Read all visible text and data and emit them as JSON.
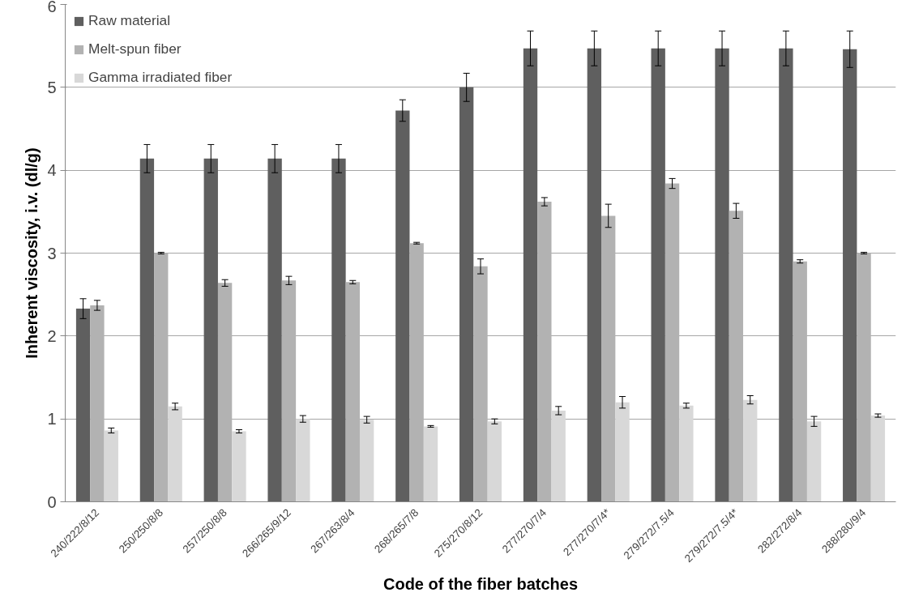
{
  "chart_data": {
    "type": "bar",
    "xlabel": "Code of the fiber batches",
    "ylabel": "Inherent viscosity, i.v. (dl/g)",
    "categories": [
      "240/222/8/12",
      "250/250/8/8",
      "257/250/8/8",
      "266/265/9/12",
      "267/263/8/4",
      "268/265/7/8",
      "275/270/8/12",
      "277/270/7/4",
      "277/270/7/4*",
      "279/272/7.5/4",
      "279/272/7.5/4*",
      "282/272/8/4",
      "288/280/9/4"
    ],
    "series": [
      {
        "name": "Raw material",
        "color": "#5f5f5f",
        "values": [
          2.33,
          4.14,
          4.14,
          4.14,
          4.14,
          4.72,
          5.0,
          5.47,
          5.47,
          5.47,
          5.47,
          5.47,
          5.46
        ],
        "errors": [
          0.12,
          0.17,
          0.17,
          0.17,
          0.17,
          0.13,
          0.17,
          0.21,
          0.21,
          0.21,
          0.21,
          0.21,
          0.22
        ]
      },
      {
        "name": "Melt-spun fiber",
        "color": "#b2b2b2",
        "values": [
          2.37,
          3.0,
          2.64,
          2.67,
          2.65,
          3.12,
          2.84,
          3.62,
          3.45,
          3.84,
          3.51,
          2.9,
          3.0
        ],
        "errors": [
          0.06,
          0.01,
          0.04,
          0.05,
          0.02,
          0.01,
          0.09,
          0.05,
          0.14,
          0.06,
          0.09,
          0.02,
          0.01
        ]
      },
      {
        "name": "Gamma irradiated fiber",
        "color": "#d8d8d8",
        "values": [
          0.86,
          1.15,
          0.85,
          1.0,
          0.99,
          0.91,
          0.97,
          1.1,
          1.2,
          1.16,
          1.23,
          0.97,
          1.04
        ],
        "errors": [
          0.03,
          0.04,
          0.02,
          0.04,
          0.04,
          0.01,
          0.03,
          0.05,
          0.07,
          0.03,
          0.05,
          0.06,
          0.02
        ]
      }
    ],
    "ylim": [
      0,
      6
    ],
    "yticks": [
      0,
      1,
      2,
      3,
      4,
      5,
      6
    ],
    "grid": "y",
    "legend": "top left"
  }
}
